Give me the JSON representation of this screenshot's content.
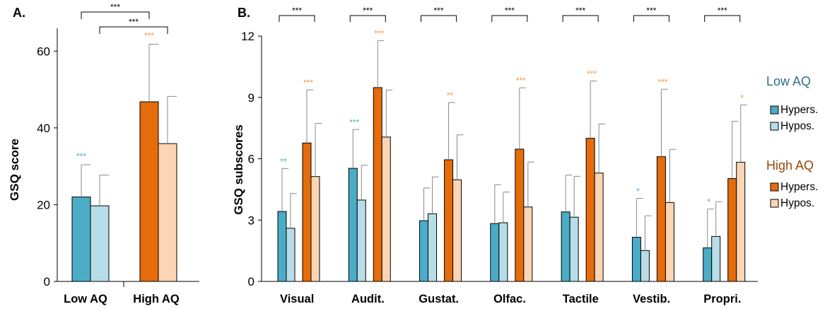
{
  "colors": {
    "low_hyper": "#4aacc6",
    "low_hypo": "#b7dee8",
    "high_hyper": "#e46c0a",
    "high_hypo": "#fcd5b5",
    "low_title": "#31707f",
    "high_title": "#984807",
    "sig_low": "#4bacc6",
    "sig_high": "#f79646"
  },
  "legend": {
    "low_title": "Low AQ",
    "high_title": "High AQ",
    "hypers": "Hypers.",
    "hypos": "Hypos."
  },
  "chart_data": [
    {
      "type": "bar",
      "panel_label": "A.",
      "ylabel": "GSQ score",
      "ylim": [
        0,
        70
      ],
      "yticks": [
        0,
        20,
        40,
        60
      ],
      "categories": [
        "Low AQ",
        "High AQ"
      ],
      "bars": [
        {
          "group": "Low AQ",
          "type": "hyper",
          "value": 22.0,
          "err": 8.4,
          "sig": "***"
        },
        {
          "group": "Low AQ",
          "type": "hypo",
          "value": 19.7,
          "err": 8.0,
          "sig": ""
        },
        {
          "group": "High AQ",
          "type": "hyper",
          "value": 46.8,
          "err": 15.0,
          "sig": "***"
        },
        {
          "group": "High AQ",
          "type": "hypo",
          "value": 35.9,
          "err": 12.3,
          "sig": ""
        }
      ],
      "brackets": [
        {
          "from": "Low AQ hyper",
          "to": "High AQ hyper",
          "label": "***"
        },
        {
          "from": "Low AQ hypo",
          "to": "High AQ hypo",
          "label": "***"
        }
      ]
    },
    {
      "type": "bar",
      "panel_label": "B.",
      "ylabel": "GSQ subscores",
      "ylim": [
        0,
        12
      ],
      "yticks": [
        0,
        3,
        6,
        9,
        12
      ],
      "categories": [
        "Visual",
        "Audit.",
        "Gustat.",
        "Olfac.",
        "Tactile",
        "Vestib.",
        "Propri."
      ],
      "series": [
        {
          "name": "Low AQ Hypers.",
          "values": [
            3.42,
            5.53,
            2.97,
            2.83,
            3.4,
            2.16,
            1.64
          ],
          "errors": [
            2.1,
            1.9,
            1.6,
            1.9,
            1.8,
            1.9,
            1.9
          ],
          "sig": [
            "**",
            "***",
            "",
            "",
            "",
            "*",
            "*"
          ]
        },
        {
          "name": "Low AQ Hypos.",
          "values": [
            2.6,
            3.98,
            3.31,
            2.87,
            3.14,
            1.51,
            2.2
          ],
          "errors": [
            1.7,
            1.7,
            1.8,
            1.5,
            2.0,
            1.7,
            1.7
          ],
          "sig": [
            "",
            "",
            "",
            "",
            "",
            "",
            ""
          ]
        },
        {
          "name": "High AQ Hypers.",
          "values": [
            6.77,
            9.48,
            5.95,
            6.47,
            7.0,
            6.1,
            5.03
          ],
          "errors": [
            2.6,
            2.3,
            2.8,
            3.0,
            2.8,
            3.3,
            2.8
          ],
          "sig": [
            "***",
            "***",
            "**",
            "***",
            "***",
            "***",
            ""
          ]
        },
        {
          "name": "High AQ Hypos.",
          "values": [
            5.13,
            7.06,
            4.97,
            3.64,
            5.3,
            3.86,
            5.83
          ],
          "errors": [
            2.6,
            2.3,
            2.2,
            2.2,
            2.4,
            2.6,
            2.8
          ],
          "sig": [
            "",
            "",
            "",
            "",
            "",
            "",
            "*"
          ]
        }
      ],
      "bracket_label": "***"
    }
  ]
}
